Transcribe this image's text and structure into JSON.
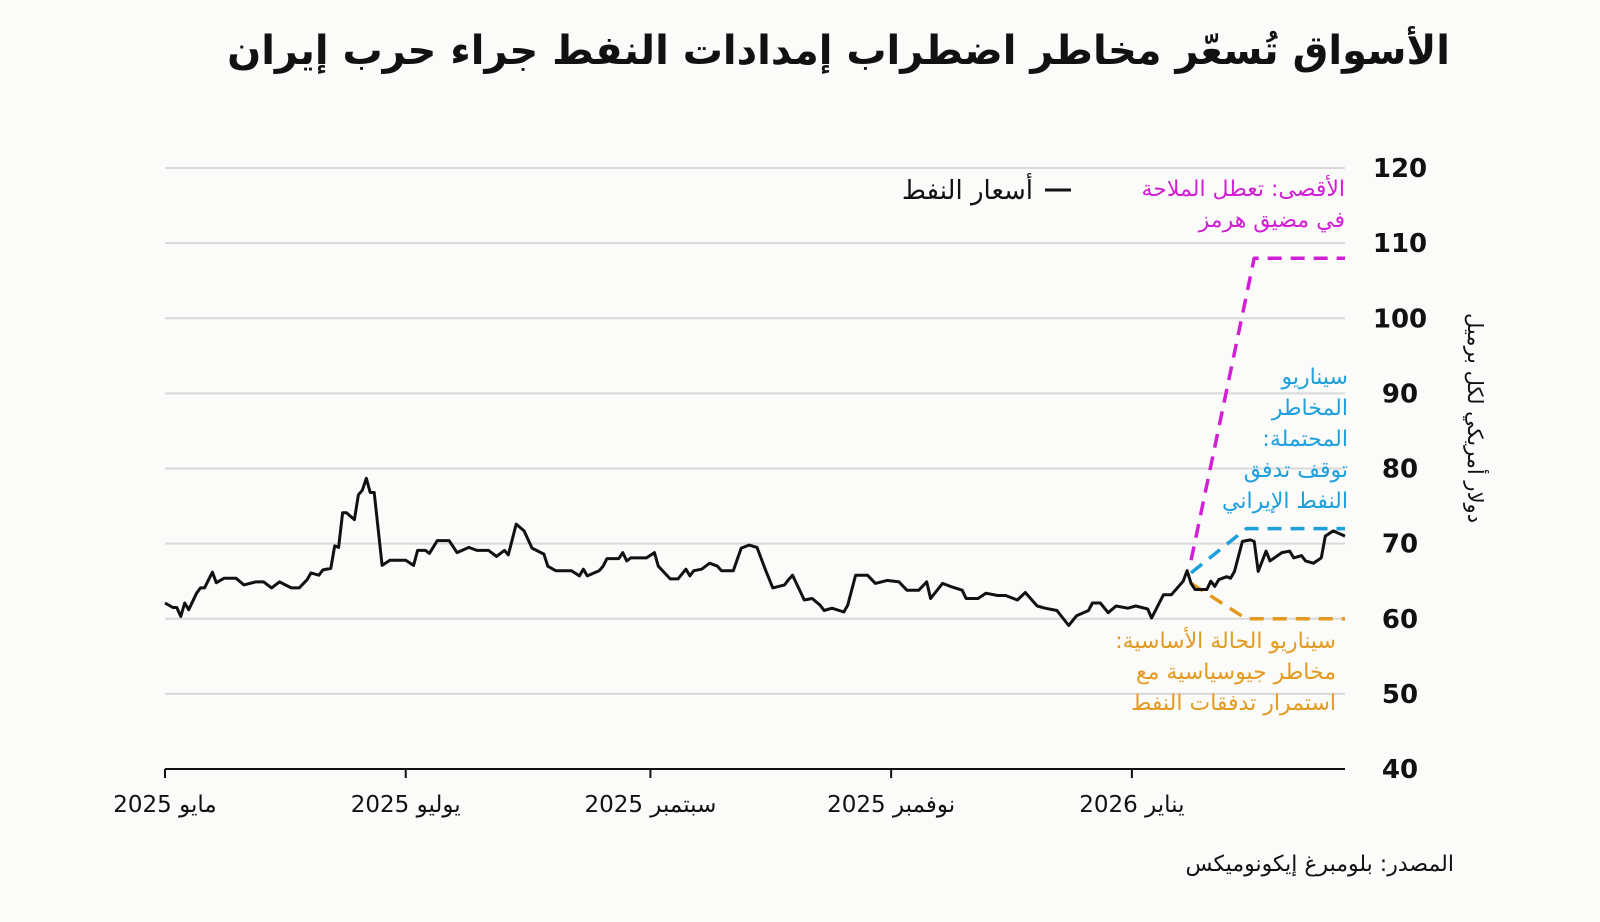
{
  "title": "الأسواق تُسعّر مخاطر اضطراب إمدادات النفط جراء حرب إيران",
  "source": "المصدر: بلومبرغ إيكونوميكس",
  "colors": {
    "price": "#111111",
    "extreme": "#d21fd6",
    "risk": "#1ea0dd",
    "base": "#e39a1e",
    "grid": "#d9d9d9",
    "background": "#fbfbf9"
  },
  "chart_data": {
    "type": "line",
    "title": "الأسواق تُسعّر مخاطر اضطراب إمدادات النفط جراء حرب إيران",
    "ylabel": "دولار أمريكي لكل برميل",
    "ylim": [
      40,
      120
    ],
    "yticks": [
      40,
      50,
      60,
      70,
      80,
      90,
      100,
      110,
      120
    ],
    "xlim": [
      "2025-05-01",
      "2026-02-24"
    ],
    "xticks": [
      {
        "date": "2025-05-01",
        "label": "مايو 2025"
      },
      {
        "date": "2025-07-01",
        "label": "يوليو 2025"
      },
      {
        "date": "2025-09-01",
        "label": "سبتمبر 2025"
      },
      {
        "date": "2025-11-01",
        "label": "نوفمبر 2025"
      },
      {
        "date": "2026-01-01",
        "label": "يناير 2026"
      }
    ],
    "grid": true,
    "legend": {
      "position": "top",
      "label": "أسعار النفط"
    },
    "series": [
      {
        "name": "أسعار النفط",
        "style": "solid",
        "color": "#111111",
        "points": [
          [
            "2025-05-01",
            62.1
          ],
          [
            "2025-05-03",
            61.5
          ],
          [
            "2025-05-04",
            61.5
          ],
          [
            "2025-05-05",
            60.3
          ],
          [
            "2025-05-06",
            62.1
          ],
          [
            "2025-05-07",
            61.2
          ],
          [
            "2025-05-09",
            63.4
          ],
          [
            "2025-05-10",
            64.1
          ],
          [
            "2025-05-11",
            64.1
          ],
          [
            "2025-05-13",
            66.2
          ],
          [
            "2025-05-14",
            64.8
          ],
          [
            "2025-05-16",
            65.4
          ],
          [
            "2025-05-19",
            65.4
          ],
          [
            "2025-05-21",
            64.5
          ],
          [
            "2025-05-24",
            64.9
          ],
          [
            "2025-05-26",
            64.9
          ],
          [
            "2025-05-28",
            64.1
          ],
          [
            "2025-05-30",
            64.9
          ],
          [
            "2025-06-02",
            64.1
          ],
          [
            "2025-06-04",
            64.1
          ],
          [
            "2025-06-06",
            65.2
          ],
          [
            "2025-06-07",
            66.1
          ],
          [
            "2025-06-09",
            65.8
          ],
          [
            "2025-06-10",
            66.5
          ],
          [
            "2025-06-12",
            66.7
          ],
          [
            "2025-06-13",
            69.7
          ],
          [
            "2025-06-14",
            69.5
          ],
          [
            "2025-06-15",
            74.1
          ],
          [
            "2025-06-16",
            74.1
          ],
          [
            "2025-06-18",
            73.2
          ],
          [
            "2025-06-19",
            76.5
          ],
          [
            "2025-06-20",
            77.1
          ],
          [
            "2025-06-21",
            78.7
          ],
          [
            "2025-06-22",
            76.8
          ],
          [
            "2025-06-23",
            76.8
          ],
          [
            "2025-06-25",
            67.1
          ],
          [
            "2025-06-27",
            67.8
          ],
          [
            "2025-06-29",
            67.8
          ],
          [
            "2025-07-01",
            67.8
          ],
          [
            "2025-07-03",
            67.1
          ],
          [
            "2025-07-04",
            69.1
          ],
          [
            "2025-07-06",
            69.1
          ],
          [
            "2025-07-07",
            68.7
          ],
          [
            "2025-07-09",
            70.4
          ],
          [
            "2025-07-12",
            70.4
          ],
          [
            "2025-07-14",
            68.8
          ],
          [
            "2025-07-17",
            69.5
          ],
          [
            "2025-07-19",
            69.1
          ],
          [
            "2025-07-22",
            69.1
          ],
          [
            "2025-07-24",
            68.3
          ],
          [
            "2025-07-26",
            69.1
          ],
          [
            "2025-07-27",
            68.5
          ],
          [
            "2025-07-29",
            72.6
          ],
          [
            "2025-07-31",
            71.7
          ],
          [
            "2025-08-02",
            69.4
          ],
          [
            "2025-08-05",
            68.6
          ],
          [
            "2025-08-06",
            67.0
          ],
          [
            "2025-08-08",
            66.4
          ],
          [
            "2025-08-12",
            66.4
          ],
          [
            "2025-08-14",
            65.7
          ],
          [
            "2025-08-15",
            66.6
          ],
          [
            "2025-08-16",
            65.7
          ],
          [
            "2025-08-19",
            66.4
          ],
          [
            "2025-08-20",
            67.0
          ],
          [
            "2025-08-21",
            68.0
          ],
          [
            "2025-08-24",
            68.0
          ],
          [
            "2025-08-25",
            68.8
          ],
          [
            "2025-08-26",
            67.7
          ],
          [
            "2025-08-27",
            68.1
          ],
          [
            "2025-08-31",
            68.1
          ],
          [
            "2025-09-02",
            68.8
          ],
          [
            "2025-09-03",
            67.0
          ],
          [
            "2025-09-06",
            65.3
          ],
          [
            "2025-09-08",
            65.3
          ],
          [
            "2025-09-10",
            66.6
          ],
          [
            "2025-09-11",
            65.7
          ],
          [
            "2025-09-12",
            66.4
          ],
          [
            "2025-09-14",
            66.6
          ],
          [
            "2025-09-16",
            67.4
          ],
          [
            "2025-09-18",
            67.0
          ],
          [
            "2025-09-19",
            66.4
          ],
          [
            "2025-09-22",
            66.4
          ],
          [
            "2025-09-24",
            69.4
          ],
          [
            "2025-09-26",
            69.8
          ],
          [
            "2025-09-28",
            69.5
          ],
          [
            "2025-09-30",
            66.7
          ],
          [
            "2025-10-02",
            64.1
          ],
          [
            "2025-10-05",
            64.5
          ],
          [
            "2025-10-06",
            65.2
          ],
          [
            "2025-10-07",
            65.8
          ],
          [
            "2025-10-08",
            64.7
          ],
          [
            "2025-10-10",
            62.5
          ],
          [
            "2025-10-12",
            62.7
          ],
          [
            "2025-10-14",
            61.8
          ],
          [
            "2025-10-15",
            61.1
          ],
          [
            "2025-10-17",
            61.4
          ],
          [
            "2025-10-20",
            60.9
          ],
          [
            "2025-10-21",
            61.8
          ],
          [
            "2025-10-23",
            65.8
          ],
          [
            "2025-10-26",
            65.8
          ],
          [
            "2025-10-28",
            64.7
          ],
          [
            "2025-10-31",
            65.1
          ],
          [
            "2025-11-03",
            64.9
          ],
          [
            "2025-11-05",
            63.8
          ],
          [
            "2025-11-08",
            63.8
          ],
          [
            "2025-11-10",
            64.9
          ],
          [
            "2025-11-11",
            62.7
          ],
          [
            "2025-11-14",
            64.7
          ],
          [
            "2025-11-16",
            64.3
          ],
          [
            "2025-11-19",
            63.8
          ],
          [
            "2025-11-20",
            62.7
          ],
          [
            "2025-11-23",
            62.7
          ],
          [
            "2025-11-25",
            63.4
          ],
          [
            "2025-11-28",
            63.1
          ],
          [
            "2025-11-30",
            63.1
          ],
          [
            "2025-12-03",
            62.5
          ],
          [
            "2025-12-05",
            63.5
          ],
          [
            "2025-12-08",
            61.7
          ],
          [
            "2025-12-10",
            61.4
          ],
          [
            "2025-12-13",
            61.1
          ],
          [
            "2025-12-16",
            59.1
          ],
          [
            "2025-12-18",
            60.4
          ],
          [
            "2025-12-21",
            61.1
          ],
          [
            "2025-12-22",
            62.1
          ],
          [
            "2025-12-24",
            62.1
          ],
          [
            "2025-12-26",
            60.8
          ],
          [
            "2025-12-28",
            61.7
          ],
          [
            "2025-12-31",
            61.4
          ],
          [
            "2026-01-02",
            61.7
          ],
          [
            "2026-01-05",
            61.3
          ],
          [
            "2026-01-06",
            60.1
          ],
          [
            "2026-01-09",
            63.2
          ],
          [
            "2026-01-11",
            63.2
          ],
          [
            "2026-01-14",
            65.0
          ],
          [
            "2026-01-15",
            66.4
          ],
          [
            "2026-01-16",
            64.7
          ],
          [
            "2026-01-17",
            63.9
          ],
          [
            "2026-01-20",
            63.9
          ],
          [
            "2026-01-21",
            65.0
          ],
          [
            "2026-01-22",
            64.3
          ],
          [
            "2026-01-23",
            65.2
          ],
          [
            "2026-01-25",
            65.6
          ],
          [
            "2026-01-26",
            65.4
          ],
          [
            "2026-01-27",
            66.3
          ],
          [
            "2026-01-29",
            70.3
          ],
          [
            "2026-01-31",
            70.5
          ],
          [
            "2026-02-01",
            70.3
          ],
          [
            "2026-02-02",
            66.3
          ],
          [
            "2026-02-04",
            69.0
          ],
          [
            "2026-02-05",
            67.7
          ],
          [
            "2026-02-08",
            68.8
          ],
          [
            "2026-02-10",
            69.0
          ],
          [
            "2026-02-11",
            68.1
          ],
          [
            "2026-02-13",
            68.4
          ],
          [
            "2026-02-14",
            67.7
          ],
          [
            "2026-02-16",
            67.4
          ],
          [
            "2026-02-18",
            68.1
          ],
          [
            "2026-02-19",
            71.0
          ],
          [
            "2026-02-21",
            71.7
          ],
          [
            "2026-02-24",
            71.0
          ]
        ]
      },
      {
        "name": "الأقصى: تعطل الملاحة في مضيق هرمز",
        "style": "dashed",
        "color": "#d21fd6",
        "points": [
          [
            "2026-01-16",
            67.8
          ],
          [
            "2026-02-01",
            108
          ],
          [
            "2026-02-24",
            108
          ]
        ]
      },
      {
        "name": "سيناريو المخاطر المحتملة: توقف تدفق النفط الإيراني",
        "style": "dashed",
        "color": "#1ea0dd",
        "points": [
          [
            "2026-01-16",
            66.1
          ],
          [
            "2026-01-30",
            72
          ],
          [
            "2026-02-24",
            72
          ]
        ]
      },
      {
        "name": "سيناريو الحالة الأساسية: مخاطر جيوسياسية مع استمرار تدفقات النفط",
        "style": "dashed",
        "color": "#e39a1e",
        "points": [
          [
            "2026-01-16",
            64.7
          ],
          [
            "2026-01-30",
            60
          ],
          [
            "2026-02-24",
            60
          ]
        ]
      }
    ],
    "annotations": {
      "extreme": [
        "الأقصى: تعطل الملاحة",
        "في مضيق هرمز"
      ],
      "risk": [
        "سيناريو",
        "المخاطر",
        "المحتملة:",
        "توقف تدفق",
        "النفط الإيراني"
      ],
      "base": [
        "سيناريو الحالة الأساسية:",
        "مخاطر جيوسياسية مع",
        "استمرار تدفقات النفط"
      ]
    }
  }
}
